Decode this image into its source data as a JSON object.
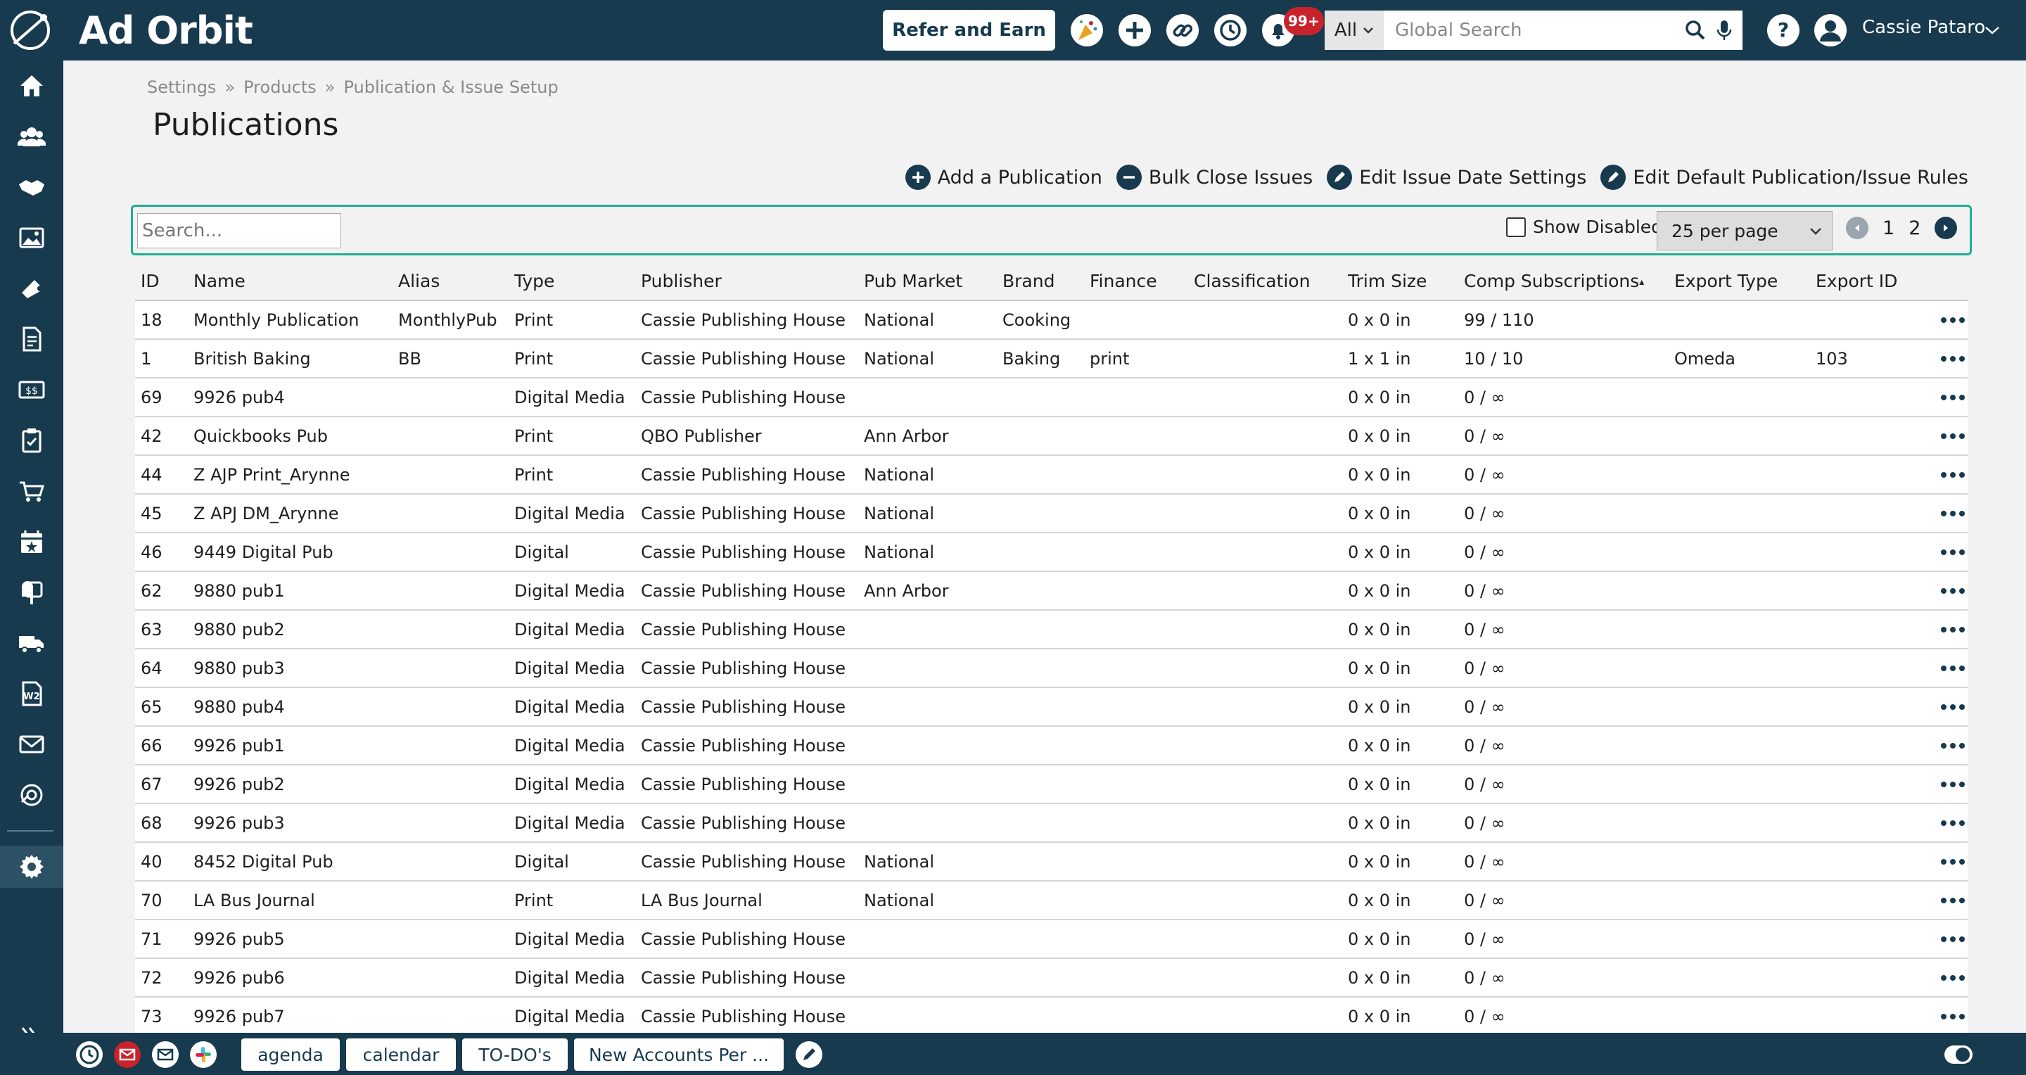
{
  "app": {
    "logo_text": "Ad Orbit"
  },
  "topbar": {
    "refer_label": "Refer and Earn",
    "notif_badge": "99+",
    "search_scope": "All",
    "search_placeholder": "Global Search",
    "user_name": "Cassie Pataro"
  },
  "breadcrumb": [
    "Settings",
    "Products",
    "Publication & Issue Setup"
  ],
  "breadcrumb_sep": "»",
  "page_title": "Publications",
  "actions": {
    "add": "Add a Publication",
    "bulk_close": "Bulk Close Issues",
    "edit_dates": "Edit Issue Date Settings",
    "edit_rules": "Edit Default Publication/Issue Rules"
  },
  "toolbar": {
    "search_placeholder": "Search...",
    "show_disabled": "Show Disabled",
    "per_page": "25 per page",
    "pages": [
      "1",
      "2"
    ]
  },
  "columns": [
    "ID",
    "Name",
    "Alias",
    "Type",
    "Publisher",
    "Pub Market",
    "Brand",
    "Finance",
    "Classification",
    "Trim Size",
    "Comp Subscriptions",
    "Export Type",
    "Export ID"
  ],
  "sort_indicator": "▴",
  "rows": [
    {
      "id": "18",
      "name": "Monthly Publication",
      "alias": "MonthlyPub",
      "type": "Print",
      "publisher": "Cassie Publishing House",
      "market": "National",
      "brand": "Cooking",
      "finance": "",
      "classification": "",
      "trim": "0 x 0 in",
      "comp": "99 / 110",
      "export_type": "",
      "export_id": ""
    },
    {
      "id": "1",
      "name": "British Baking",
      "alias": "BB",
      "type": "Print",
      "publisher": "Cassie Publishing House",
      "market": "National",
      "brand": "Baking",
      "finance": "print",
      "classification": "",
      "trim": "1 x 1 in",
      "comp": "10 / 10",
      "export_type": "Omeda",
      "export_id": "103"
    },
    {
      "id": "69",
      "name": "9926 pub4",
      "alias": "",
      "type": "Digital Media",
      "publisher": "Cassie Publishing House",
      "market": "",
      "brand": "",
      "finance": "",
      "classification": "",
      "trim": "0 x 0 in",
      "comp": "0 / ∞",
      "export_type": "",
      "export_id": ""
    },
    {
      "id": "42",
      "name": "Quickbooks Pub",
      "alias": "",
      "type": "Print",
      "publisher": "QBO Publisher",
      "market": "Ann Arbor",
      "brand": "",
      "finance": "",
      "classification": "",
      "trim": "0 x 0 in",
      "comp": "0 / ∞",
      "export_type": "",
      "export_id": ""
    },
    {
      "id": "44",
      "name": "Z AJP Print_Arynne",
      "alias": "",
      "type": "Print",
      "publisher": "Cassie Publishing House",
      "market": "National",
      "brand": "",
      "finance": "",
      "classification": "",
      "trim": "0 x 0 in",
      "comp": "0 / ∞",
      "export_type": "",
      "export_id": ""
    },
    {
      "id": "45",
      "name": "Z APJ DM_Arynne",
      "alias": "",
      "type": "Digital Media",
      "publisher": "Cassie Publishing House",
      "market": "National",
      "brand": "",
      "finance": "",
      "classification": "",
      "trim": "0 x 0 in",
      "comp": "0 / ∞",
      "export_type": "",
      "export_id": ""
    },
    {
      "id": "46",
      "name": "9449 Digital Pub",
      "alias": "",
      "type": "Digital",
      "publisher": "Cassie Publishing House",
      "market": "National",
      "brand": "",
      "finance": "",
      "classification": "",
      "trim": "0 x 0 in",
      "comp": "0 / ∞",
      "export_type": "",
      "export_id": ""
    },
    {
      "id": "62",
      "name": "9880 pub1",
      "alias": "",
      "type": "Digital Media",
      "publisher": "Cassie Publishing House",
      "market": "Ann Arbor",
      "brand": "",
      "finance": "",
      "classification": "",
      "trim": "0 x 0 in",
      "comp": "0 / ∞",
      "export_type": "",
      "export_id": ""
    },
    {
      "id": "63",
      "name": "9880 pub2",
      "alias": "",
      "type": "Digital Media",
      "publisher": "Cassie Publishing House",
      "market": "",
      "brand": "",
      "finance": "",
      "classification": "",
      "trim": "0 x 0 in",
      "comp": "0 / ∞",
      "export_type": "",
      "export_id": ""
    },
    {
      "id": "64",
      "name": "9880 pub3",
      "alias": "",
      "type": "Digital Media",
      "publisher": "Cassie Publishing House",
      "market": "",
      "brand": "",
      "finance": "",
      "classification": "",
      "trim": "0 x 0 in",
      "comp": "0 / ∞",
      "export_type": "",
      "export_id": ""
    },
    {
      "id": "65",
      "name": "9880 pub4",
      "alias": "",
      "type": "Digital Media",
      "publisher": "Cassie Publishing House",
      "market": "",
      "brand": "",
      "finance": "",
      "classification": "",
      "trim": "0 x 0 in",
      "comp": "0 / ∞",
      "export_type": "",
      "export_id": ""
    },
    {
      "id": "66",
      "name": "9926 pub1",
      "alias": "",
      "type": "Digital Media",
      "publisher": "Cassie Publishing House",
      "market": "",
      "brand": "",
      "finance": "",
      "classification": "",
      "trim": "0 x 0 in",
      "comp": "0 / ∞",
      "export_type": "",
      "export_id": ""
    },
    {
      "id": "67",
      "name": "9926 pub2",
      "alias": "",
      "type": "Digital Media",
      "publisher": "Cassie Publishing House",
      "market": "",
      "brand": "",
      "finance": "",
      "classification": "",
      "trim": "0 x 0 in",
      "comp": "0 / ∞",
      "export_type": "",
      "export_id": ""
    },
    {
      "id": "68",
      "name": "9926 pub3",
      "alias": "",
      "type": "Digital Media",
      "publisher": "Cassie Publishing House",
      "market": "",
      "brand": "",
      "finance": "",
      "classification": "",
      "trim": "0 x 0 in",
      "comp": "0 / ∞",
      "export_type": "",
      "export_id": ""
    },
    {
      "id": "40",
      "name": "8452 Digital Pub",
      "alias": "",
      "type": "Digital",
      "publisher": "Cassie Publishing House",
      "market": "National",
      "brand": "",
      "finance": "",
      "classification": "",
      "trim": "0 x 0 in",
      "comp": "0 / ∞",
      "export_type": "",
      "export_id": ""
    },
    {
      "id": "70",
      "name": "LA Bus Journal",
      "alias": "",
      "type": "Print",
      "publisher": "LA Bus Journal",
      "market": "National",
      "brand": "",
      "finance": "",
      "classification": "",
      "trim": "0 x 0 in",
      "comp": "0 / ∞",
      "export_type": "",
      "export_id": ""
    },
    {
      "id": "71",
      "name": "9926 pub5",
      "alias": "",
      "type": "Digital Media",
      "publisher": "Cassie Publishing House",
      "market": "",
      "brand": "",
      "finance": "",
      "classification": "",
      "trim": "0 x 0 in",
      "comp": "0 / ∞",
      "export_type": "",
      "export_id": ""
    },
    {
      "id": "72",
      "name": "9926 pub6",
      "alias": "",
      "type": "Digital Media",
      "publisher": "Cassie Publishing House",
      "market": "",
      "brand": "",
      "finance": "",
      "classification": "",
      "trim": "0 x 0 in",
      "comp": "0 / ∞",
      "export_type": "",
      "export_id": ""
    },
    {
      "id": "73",
      "name": "9926 pub7",
      "alias": "",
      "type": "Digital Media",
      "publisher": "Cassie Publishing House",
      "market": "",
      "brand": "",
      "finance": "",
      "classification": "",
      "trim": "0 x 0 in",
      "comp": "0 / ∞",
      "export_type": "",
      "export_id": ""
    }
  ],
  "sidebar_icons": [
    "home-icon",
    "contacts-icon",
    "handshake-icon",
    "media-icon",
    "ticket-icon",
    "document-icon",
    "billing-icon",
    "clipboard-icon",
    "cart-icon",
    "calendar-star-icon",
    "mailbox-icon",
    "delivery-truck-icon",
    "w2-form-icon",
    "mail-icon",
    "support-icon",
    "settings-icon"
  ],
  "bottombar": {
    "tabs": [
      "agenda",
      "calendar",
      "TO-DO's",
      "New Accounts Per ..."
    ]
  },
  "colors": {
    "primary": "#173a4e",
    "accent": "#1fae8f",
    "badge": "#c8232c"
  }
}
